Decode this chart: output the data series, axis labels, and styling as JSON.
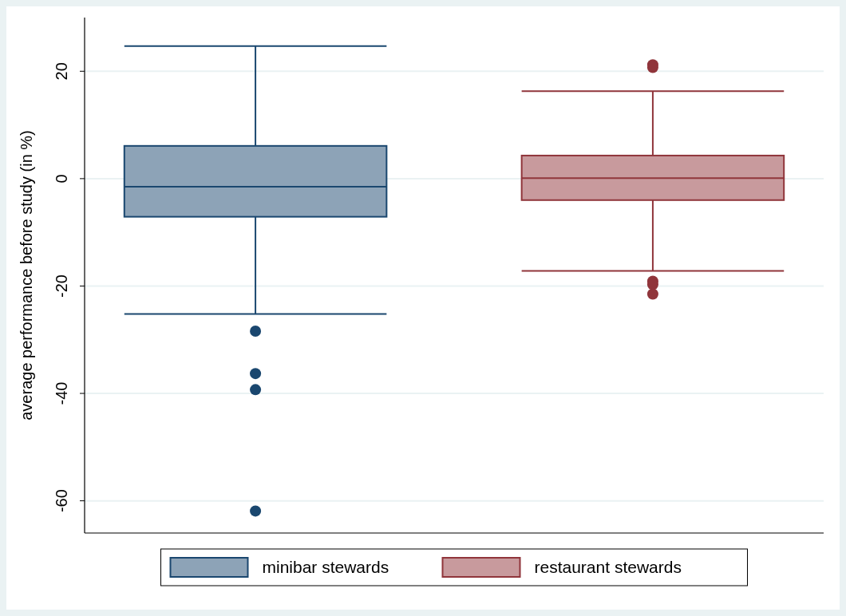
{
  "chart_data": {
    "type": "box",
    "ylabel": "average performance before study (in %)",
    "categories": [
      null
    ],
    "series": [
      {
        "name": "minibar stewards",
        "color": "#1a476f",
        "boxes": [
          {
            "low": -25.2,
            "q1": -7.1,
            "median": -1.5,
            "q3": 6.1,
            "high": 24.7,
            "outliers": [
              -28.4,
              -36.3,
              -39.3,
              -61.9
            ]
          }
        ]
      },
      {
        "name": "restaurant stewards",
        "color": "#90353b",
        "boxes": [
          {
            "low": -17.2,
            "q1": -4.0,
            "median": 0.1,
            "q3": 4.3,
            "high": 16.3,
            "outliers": [
              21.2,
              20.7,
              -19.1,
              -19.7,
              -21.5
            ]
          }
        ]
      }
    ],
    "ylim": [
      -66,
      30
    ],
    "yticks": [
      -60,
      -40,
      -20,
      0,
      20
    ],
    "grid": "y",
    "legend": "bottom",
    "tick_labels": "y"
  }
}
